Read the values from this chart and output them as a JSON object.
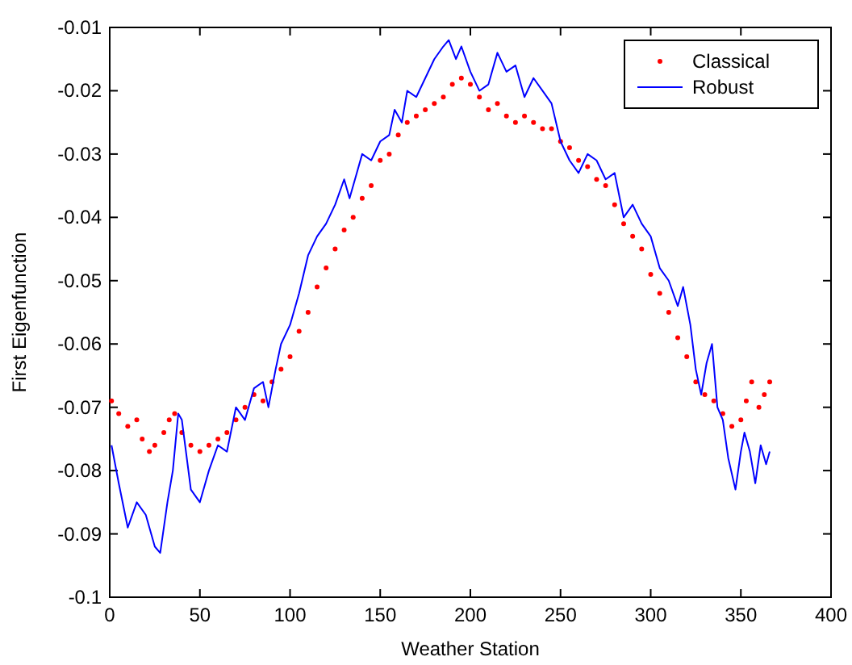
{
  "chart_data": {
    "type": "line",
    "xlabel": "Weather Station",
    "ylabel": "First Eigenfunction",
    "xlim": [
      0,
      400
    ],
    "xticks": [
      0,
      50,
      100,
      150,
      200,
      250,
      300,
      350,
      400
    ],
    "ylim": [
      -0.1,
      -0.01
    ],
    "yticks": [
      -0.1,
      -0.09,
      -0.08,
      -0.07,
      -0.06,
      -0.05,
      -0.04,
      -0.03,
      -0.02,
      -0.01
    ],
    "legend": "top right",
    "grid": false,
    "series": [
      {
        "name": "Classical",
        "type": "scatter",
        "marker": "circle",
        "color": "#ff0000",
        "x": [
          1,
          5,
          10,
          15,
          18,
          22,
          25,
          30,
          33,
          36,
          40,
          45,
          50,
          55,
          60,
          65,
          70,
          75,
          80,
          85,
          90,
          95,
          100,
          105,
          110,
          115,
          120,
          125,
          130,
          135,
          140,
          145,
          150,
          155,
          160,
          165,
          170,
          175,
          180,
          185,
          190,
          195,
          200,
          205,
          210,
          215,
          220,
          225,
          230,
          235,
          240,
          245,
          250,
          255,
          260,
          265,
          270,
          275,
          280,
          285,
          290,
          295,
          300,
          305,
          310,
          315,
          320,
          325,
          330,
          335,
          340,
          345,
          350,
          353,
          356,
          360,
          363,
          366
        ],
        "values": [
          -0.069,
          -0.071,
          -0.073,
          -0.072,
          -0.075,
          -0.077,
          -0.076,
          -0.074,
          -0.072,
          -0.071,
          -0.074,
          -0.076,
          -0.077,
          -0.076,
          -0.075,
          -0.074,
          -0.072,
          -0.07,
          -0.068,
          -0.069,
          -0.066,
          -0.064,
          -0.062,
          -0.058,
          -0.055,
          -0.051,
          -0.048,
          -0.045,
          -0.042,
          -0.04,
          -0.037,
          -0.035,
          -0.031,
          -0.03,
          -0.027,
          -0.025,
          -0.024,
          -0.023,
          -0.022,
          -0.021,
          -0.019,
          -0.018,
          -0.019,
          -0.021,
          -0.023,
          -0.022,
          -0.024,
          -0.025,
          -0.024,
          -0.025,
          -0.026,
          -0.026,
          -0.028,
          -0.029,
          -0.031,
          -0.032,
          -0.034,
          -0.035,
          -0.038,
          -0.041,
          -0.043,
          -0.045,
          -0.049,
          -0.052,
          -0.055,
          -0.059,
          -0.062,
          -0.066,
          -0.068,
          -0.069,
          -0.071,
          -0.073,
          -0.072,
          -0.069,
          -0.066,
          -0.07,
          -0.068,
          -0.066
        ]
      },
      {
        "name": "Robust",
        "line_style": "solid",
        "color": "#0000ff",
        "x": [
          1,
          5,
          10,
          15,
          20,
          25,
          28,
          32,
          35,
          38,
          40,
          45,
          50,
          55,
          60,
          65,
          70,
          75,
          80,
          85,
          88,
          92,
          95,
          100,
          105,
          110,
          115,
          120,
          125,
          130,
          133,
          137,
          140,
          145,
          150,
          155,
          158,
          162,
          165,
          170,
          175,
          180,
          185,
          188,
          192,
          195,
          200,
          205,
          210,
          215,
          220,
          225,
          230,
          235,
          240,
          245,
          250,
          255,
          260,
          265,
          270,
          275,
          280,
          285,
          290,
          295,
          300,
          305,
          310,
          315,
          318,
          322,
          325,
          328,
          331,
          334,
          337,
          340,
          343,
          347,
          350,
          352,
          355,
          358,
          361,
          364,
          366
        ],
        "values": [
          -0.076,
          -0.082,
          -0.089,
          -0.085,
          -0.087,
          -0.092,
          -0.093,
          -0.085,
          -0.08,
          -0.071,
          -0.072,
          -0.083,
          -0.085,
          -0.08,
          -0.076,
          -0.077,
          -0.07,
          -0.072,
          -0.067,
          -0.066,
          -0.07,
          -0.064,
          -0.06,
          -0.057,
          -0.052,
          -0.046,
          -0.043,
          -0.041,
          -0.038,
          -0.034,
          -0.037,
          -0.033,
          -0.03,
          -0.031,
          -0.028,
          -0.027,
          -0.023,
          -0.025,
          -0.02,
          -0.021,
          -0.018,
          -0.015,
          -0.013,
          -0.012,
          -0.015,
          -0.013,
          -0.017,
          -0.02,
          -0.019,
          -0.014,
          -0.017,
          -0.016,
          -0.021,
          -0.018,
          -0.02,
          -0.022,
          -0.028,
          -0.031,
          -0.033,
          -0.03,
          -0.031,
          -0.034,
          -0.033,
          -0.04,
          -0.038,
          -0.041,
          -0.043,
          -0.048,
          -0.05,
          -0.054,
          -0.051,
          -0.057,
          -0.064,
          -0.068,
          -0.063,
          -0.06,
          -0.07,
          -0.072,
          -0.078,
          -0.083,
          -0.077,
          -0.074,
          -0.077,
          -0.082,
          -0.076,
          -0.079,
          -0.077
        ]
      }
    ]
  }
}
